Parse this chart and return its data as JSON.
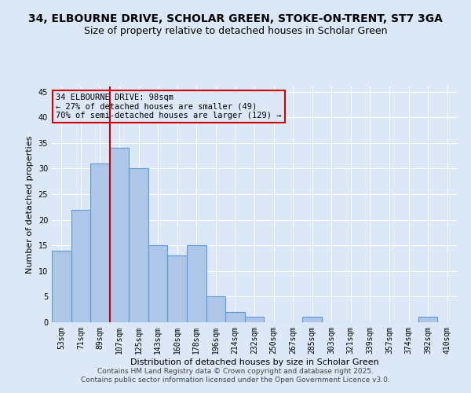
{
  "title": "34, ELBOURNE DRIVE, SCHOLAR GREEN, STOKE-ON-TRENT, ST7 3GA",
  "subtitle": "Size of property relative to detached houses in Scholar Green",
  "xlabel": "Distribution of detached houses by size in Scholar Green",
  "ylabel": "Number of detached properties",
  "footer_line1": "Contains HM Land Registry data © Crown copyright and database right 2025.",
  "footer_line2": "Contains public sector information licensed under the Open Government Licence v3.0.",
  "categories": [
    "53sqm",
    "71sqm",
    "89sqm",
    "107sqm",
    "125sqm",
    "143sqm",
    "160sqm",
    "178sqm",
    "196sqm",
    "214sqm",
    "232sqm",
    "250sqm",
    "267sqm",
    "285sqm",
    "303sqm",
    "321sqm",
    "339sqm",
    "357sqm",
    "374sqm",
    "392sqm",
    "410sqm"
  ],
  "values": [
    14,
    22,
    31,
    34,
    30,
    15,
    13,
    15,
    5,
    2,
    1,
    0,
    0,
    1,
    0,
    0,
    0,
    0,
    0,
    1,
    0
  ],
  "bar_color": "#aec6e8",
  "bar_edge_color": "#5b9bd5",
  "bg_color": "#dce7f7",
  "grid_color": "#ffffff",
  "annotation_box_color": "#cc0000",
  "annotation_line_color": "#cc0000",
  "annotation_text_line1": "34 ELBOURNE DRIVE: 98sqm",
  "annotation_text_line2": "← 27% of detached houses are smaller (49)",
  "annotation_text_line3": "70% of semi-detached houses are larger (129) →",
  "red_line_x": 2.5,
  "ylim": [
    0,
    46
  ],
  "yticks": [
    0,
    5,
    10,
    15,
    20,
    25,
    30,
    35,
    40,
    45
  ],
  "title_fontsize": 10,
  "subtitle_fontsize": 9,
  "annotation_fontsize": 7.5,
  "axis_label_fontsize": 8,
  "tick_fontsize": 7,
  "footer_fontsize": 6.5
}
